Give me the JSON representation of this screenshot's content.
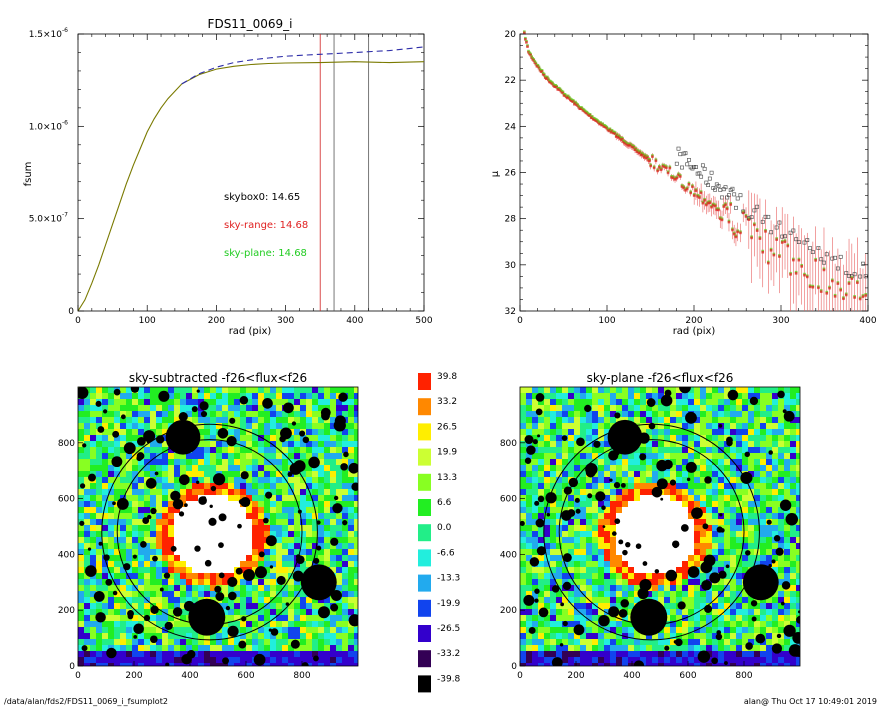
{
  "chart_data": [
    {
      "type": "line",
      "title": "FDS11_0069_i",
      "xlabel": "rad (pix)",
      "ylabel": "fsum",
      "xlim": [
        0,
        500
      ],
      "ylim": [
        0,
        1.5e-06
      ],
      "x_ticks": [
        "0",
        "100",
        "200",
        "300",
        "400",
        "500"
      ],
      "y_ticks": [
        "0",
        "5.0×10",
        "1.0×10",
        "1.5×10"
      ],
      "y_tick_exponents": [
        "",
        "-7",
        "-6",
        "-6"
      ],
      "series": [
        {
          "style": "solid",
          "color": "#7a7a00",
          "x": [
            0,
            10,
            20,
            30,
            40,
            50,
            60,
            70,
            80,
            90,
            100,
            110,
            120,
            130,
            140,
            150,
            175,
            200,
            225,
            250,
            275,
            300,
            350,
            400,
            450,
            500
          ],
          "y": [
            0,
            6e-08,
            1.5e-07,
            2.5e-07,
            3.6e-07,
            4.7e-07,
            5.8e-07,
            6.9e-07,
            7.9e-07,
            8.8e-07,
            9.7e-07,
            1.04e-06,
            1.1e-06,
            1.15e-06,
            1.19e-06,
            1.23e-06,
            1.28e-06,
            1.31e-06,
            1.325e-06,
            1.335e-06,
            1.34e-06,
            1.343e-06,
            1.345e-06,
            1.35e-06,
            1.345e-06,
            1.35e-06
          ]
        },
        {
          "style": "dashed",
          "color": "#2c2ca8",
          "x": [
            150,
            175,
            200,
            225,
            250,
            275,
            300,
            325,
            350,
            375,
            400,
            425,
            450,
            475,
            500
          ],
          "y": [
            1.23e-06,
            1.285e-06,
            1.32e-06,
            1.345e-06,
            1.36e-06,
            1.37e-06,
            1.38e-06,
            1.385e-06,
            1.39e-06,
            1.395e-06,
            1.4e-06,
            1.405e-06,
            1.41e-06,
            1.42e-06,
            1.43e-06
          ]
        }
      ],
      "vlines": [
        {
          "x": 350,
          "color": "#d02020"
        },
        {
          "x": 370,
          "color": "#555555"
        },
        {
          "x": 420,
          "color": "#555555"
        }
      ],
      "annotations": [
        {
          "text": "skybox0: 14.65",
          "color": "#000000"
        },
        {
          "text": "sky-range: 14.68",
          "color": "#e02020"
        },
        {
          "text": "sky-plane: 14.68",
          "color": "#22cc22"
        }
      ]
    },
    {
      "type": "scatter",
      "xlabel": "rad (pix)",
      "ylabel": "μ",
      "xlim": [
        0,
        400
      ],
      "ylim": [
        32,
        20
      ],
      "x_ticks": [
        "0",
        "100",
        "200",
        "300",
        "400"
      ],
      "y_ticks": [
        "20",
        "22",
        "24",
        "26",
        "28",
        "30",
        "32"
      ],
      "profile": {
        "x": [
          5,
          10,
          20,
          30,
          50,
          75,
          100,
          125,
          150,
          175,
          200,
          225,
          250,
          270,
          290,
          310,
          330,
          350,
          370,
          390
        ],
        "y": [
          20.0,
          20.8,
          21.4,
          21.9,
          22.6,
          23.4,
          24.1,
          24.8,
          25.5,
          26.1,
          26.8,
          27.5,
          28.2,
          28.8,
          29.4,
          29.8,
          30.2,
          30.6,
          31.0,
          31.2
        ]
      },
      "series_colors": {
        "sky-range": "#e02020",
        "sky-plane": "#66cc22",
        "skybox0": "#444444"
      }
    },
    {
      "type": "heatmap",
      "title": "sky-subtracted -f26<flux<f26",
      "xlim": [
        0,
        1000
      ],
      "ylim": [
        0,
        1000
      ],
      "x_ticks": [
        "0",
        "200",
        "400",
        "600",
        "800"
      ],
      "y_ticks": [
        "0",
        "200",
        "400",
        "600",
        "800"
      ]
    },
    {
      "type": "heatmap",
      "title": "sky-plane -f26<flux<f26",
      "xlim": [
        0,
        1000
      ],
      "ylim": [
        0,
        1000
      ],
      "x_ticks": [
        "0",
        "200",
        "400",
        "600",
        "800"
      ],
      "y_ticks": [
        "0",
        "200",
        "400",
        "600",
        "800"
      ]
    }
  ],
  "colorbar": {
    "labels": [
      "39.8",
      "33.2",
      "26.5",
      "19.9",
      "13.3",
      "6.6",
      "0.0",
      "-6.6",
      "-13.3",
      "-19.9",
      "-26.5",
      "-33.2",
      "-39.8"
    ],
    "colors": [
      "#ff2200",
      "#ff8800",
      "#ffee00",
      "#ccff33",
      "#88ff22",
      "#22ee22",
      "#22ee88",
      "#22eedd",
      "#22aaee",
      "#1144ee",
      "#3300cc",
      "#330055",
      "#000000"
    ]
  },
  "footer": {
    "left": "/data/alan/fds2/FDS11_0069_i_fsumplot2",
    "right": "alan@  Thu Oct 17 10:49:01 2019"
  }
}
